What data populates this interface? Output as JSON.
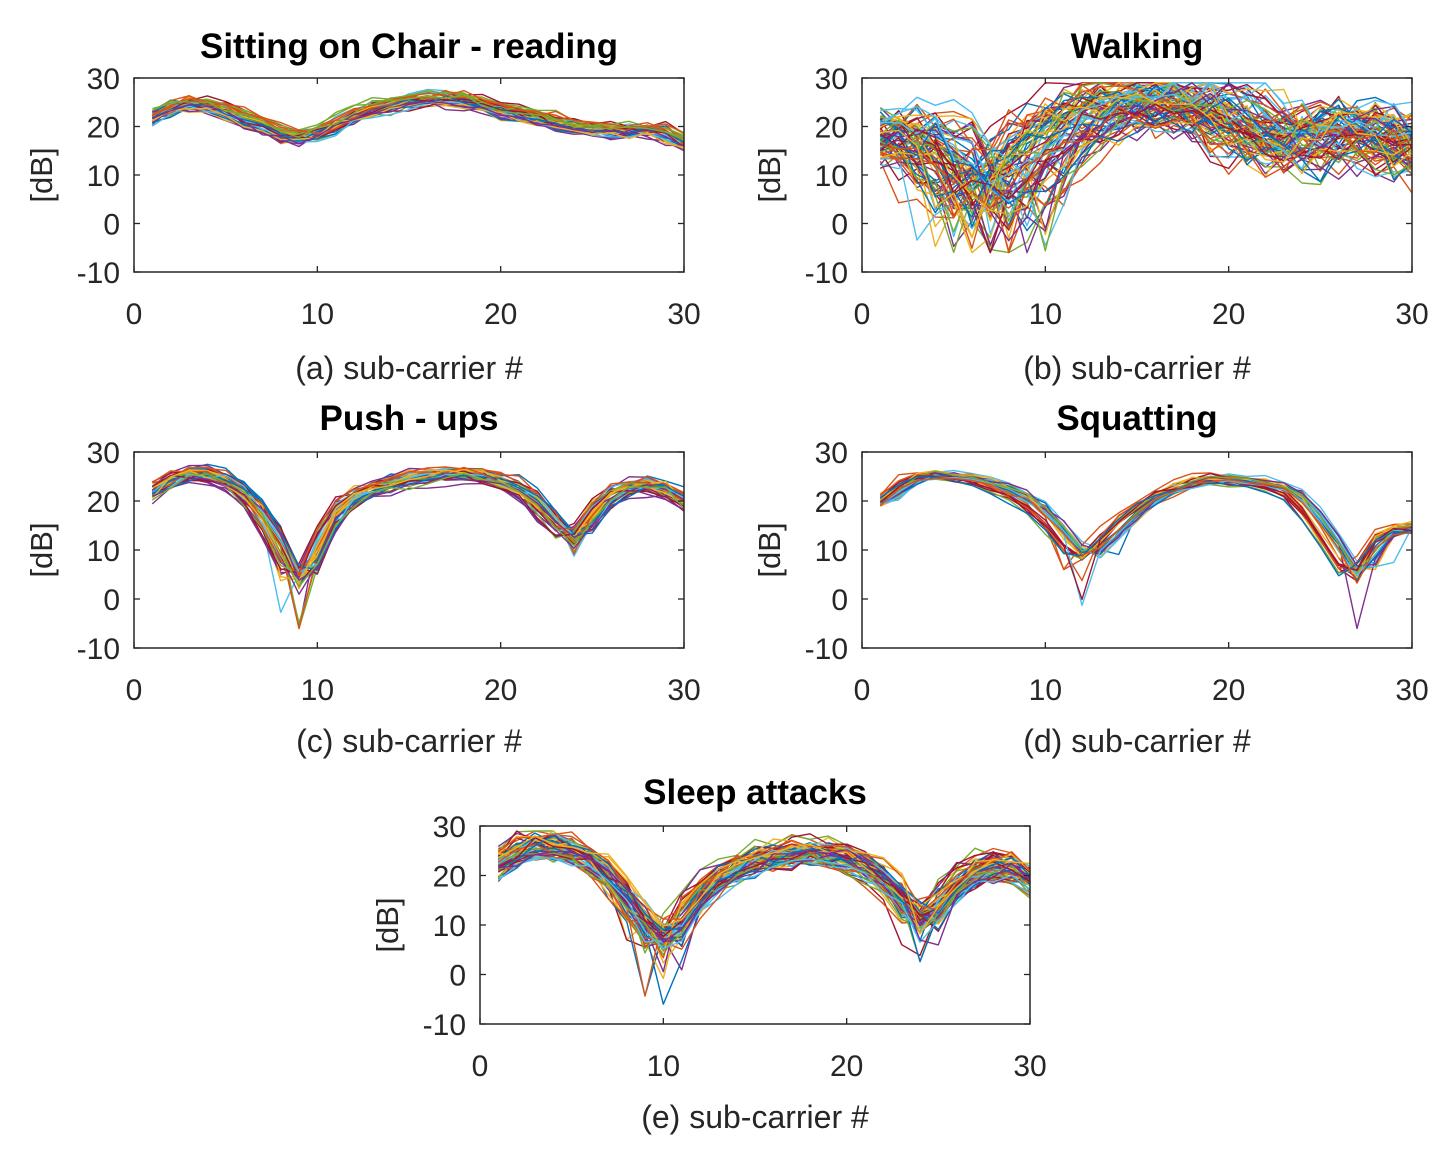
{
  "figure_title": "",
  "palette": [
    "#0072BD",
    "#D95319",
    "#EDB120",
    "#7E2F8E",
    "#77AC30",
    "#4DBEEE",
    "#A2142F"
  ],
  "chart_data": [
    {
      "id": "a",
      "type": "line",
      "title": "Sitting on Chair - reading",
      "xlabel": "(a)  sub-carrier #",
      "ylabel": "[dB]",
      "xlim": [
        0,
        30
      ],
      "ylim": [
        -10,
        30
      ],
      "xticks": [
        "0",
        "10",
        "20",
        "30"
      ],
      "yticks": [
        "-10",
        "0",
        "10",
        "20",
        "30"
      ],
      "x": [
        1,
        2,
        3,
        4,
        5,
        6,
        7,
        8,
        9,
        10,
        11,
        12,
        13,
        14,
        15,
        16,
        17,
        18,
        19,
        20,
        21,
        22,
        23,
        24,
        25,
        26,
        27,
        28,
        29,
        30
      ],
      "mean_profile": [
        21.5,
        24,
        25,
        24.5,
        23.5,
        22,
        20.5,
        18.5,
        17.5,
        18.5,
        20,
        22,
        23.5,
        24.5,
        25,
        25.5,
        26,
        25.5,
        24.5,
        23.5,
        22.5,
        22,
        21,
        20,
        19.5,
        19,
        19,
        19.5,
        19,
        16.5
      ],
      "series_count": 40,
      "spread_db": 1.5
    },
    {
      "id": "b",
      "type": "line",
      "title": "Walking",
      "xlabel": "(b) sub-carrier #",
      "ylabel": "[dB]",
      "xlim": [
        0,
        30
      ],
      "ylim": [
        -10,
        30
      ],
      "xticks": [
        "0",
        "10",
        "20",
        "30"
      ],
      "yticks": [
        "-10",
        "0",
        "10",
        "20",
        "30"
      ],
      "x": [
        1,
        2,
        3,
        4,
        5,
        6,
        7,
        8,
        9,
        10,
        11,
        12,
        13,
        14,
        15,
        16,
        17,
        18,
        19,
        20,
        21,
        22,
        23,
        24,
        25,
        26,
        27,
        28,
        29,
        30
      ],
      "mean_profile": [
        18,
        19,
        18,
        15,
        11,
        8,
        7,
        9,
        13,
        17,
        20,
        22,
        23.5,
        24.5,
        25,
        25.5,
        25.5,
        25,
        24,
        22,
        19,
        16,
        15,
        17,
        19,
        20,
        20,
        19.5,
        18,
        14
      ],
      "series_count": 80,
      "spread_db": 6
    },
    {
      "id": "c",
      "type": "line",
      "title": "Push - ups",
      "xlabel": "(c) sub-carrier #",
      "ylabel": "[dB]",
      "xlim": [
        0,
        30
      ],
      "ylim": [
        -10,
        30
      ],
      "xticks": [
        "0",
        "10",
        "20",
        "30"
      ],
      "yticks": [
        "-10",
        "0",
        "10",
        "20",
        "30"
      ],
      "x": [
        1,
        2,
        3,
        4,
        5,
        6,
        7,
        8,
        9,
        10,
        11,
        12,
        13,
        14,
        15,
        16,
        17,
        18,
        19,
        20,
        21,
        22,
        23,
        24,
        25,
        26,
        27,
        28,
        29,
        30
      ],
      "mean_profile": [
        21.5,
        24.5,
        26,
        25.5,
        24,
        21.5,
        17,
        10.5,
        2,
        10.5,
        18,
        21,
        22.5,
        23.5,
        24.5,
        25,
        25.5,
        25.5,
        25,
        24,
        22.5,
        19.5,
        15,
        12,
        17.5,
        21.5,
        23,
        23.5,
        22.5,
        19.5
      ],
      "series_count": 40,
      "spread_db": 1.6
    },
    {
      "id": "d",
      "type": "line",
      "title": "Squatting",
      "xlabel": "(d) sub-carrier #",
      "ylabel": "[dB]",
      "xlim": [
        0,
        30
      ],
      "ylim": [
        -10,
        30
      ],
      "xticks": [
        "0",
        "10",
        "20",
        "30"
      ],
      "yticks": [
        "-10",
        "0",
        "10",
        "20",
        "30"
      ],
      "x": [
        1,
        2,
        3,
        4,
        5,
        6,
        7,
        8,
        9,
        10,
        11,
        12,
        13,
        14,
        15,
        16,
        17,
        18,
        19,
        20,
        21,
        22,
        23,
        24,
        25,
        26,
        27,
        28,
        29,
        30
      ],
      "mean_profile": [
        19.5,
        23,
        25,
        25.5,
        25,
        24.5,
        23.5,
        22,
        20,
        17,
        12.5,
        8,
        11,
        15,
        18.5,
        21,
        22.5,
        24,
        24.5,
        24.5,
        24,
        23.5,
        22.5,
        20,
        14.5,
        9,
        3,
        12,
        14.5,
        14.5
      ],
      "series_count": 30,
      "spread_db": 1.1
    },
    {
      "id": "e",
      "type": "line",
      "title": "Sleep attacks",
      "xlabel": "(e) sub-carrier #",
      "ylabel": "[dB]",
      "xlim": [
        0,
        30
      ],
      "ylim": [
        -10,
        30
      ],
      "xticks": [
        "0",
        "10",
        "20",
        "30"
      ],
      "yticks": [
        "-10",
        "0",
        "10",
        "20",
        "30"
      ],
      "x": [
        1,
        2,
        3,
        4,
        5,
        6,
        7,
        8,
        9,
        10,
        11,
        12,
        13,
        14,
        15,
        16,
        17,
        18,
        19,
        20,
        21,
        22,
        23,
        24,
        25,
        26,
        27,
        28,
        29,
        30
      ],
      "mean_profile": [
        22,
        25,
        26,
        26,
        25,
        23,
        20,
        15.5,
        9.5,
        7,
        11,
        16,
        19.5,
        21.5,
        23,
        24,
        24.5,
        25,
        24.5,
        23.5,
        22,
        19.5,
        15.5,
        10,
        14,
        18.5,
        21,
        22,
        21.5,
        19
      ],
      "series_count": 60,
      "spread_db": 2.8
    }
  ]
}
